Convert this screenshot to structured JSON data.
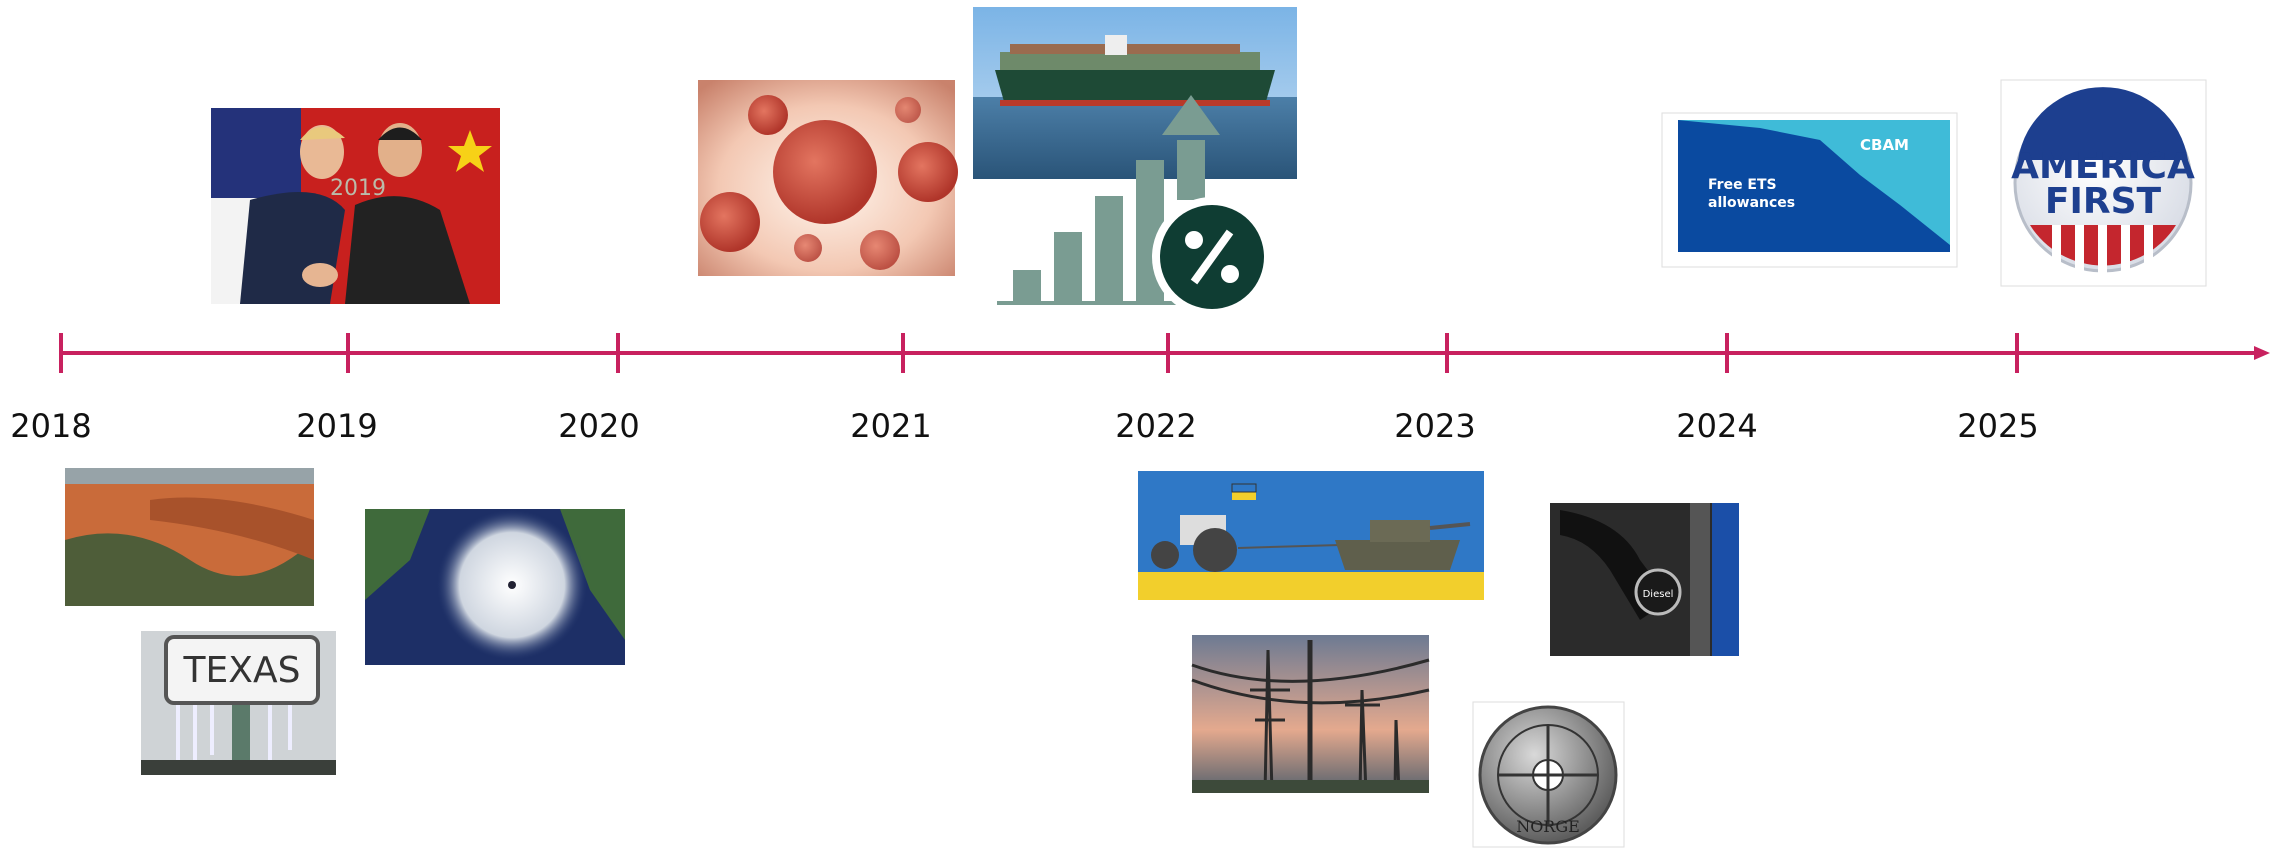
{
  "timeline": {
    "years": [
      "2018",
      "2019",
      "2020",
      "2021",
      "2022",
      "2023",
      "2024",
      "2025"
    ]
  },
  "images": {
    "texas_sign": "TEXAS",
    "summit_banner": "2019",
    "cbam_chart": {
      "cbam": "CBAM",
      "free_ets": [
        "Free ETS",
        "allowances"
      ]
    },
    "button": [
      "AMERICA",
      "FIRST"
    ],
    "coin": "NORGE",
    "pump": "Diesel"
  }
}
